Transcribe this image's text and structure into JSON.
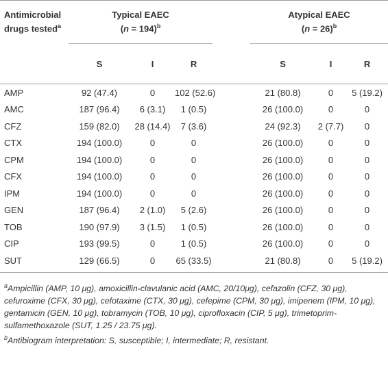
{
  "header": {
    "drug_col": "Antimicrobial drugs tested",
    "drug_col_sup": "a",
    "groups": [
      {
        "title": "Typical EAEC",
        "open": "(",
        "var": "n",
        "rest": " = 194)",
        "sup": "b"
      },
      {
        "title": "Atypical EAEC",
        "open": "(",
        "var": "n",
        "rest": " = 26)",
        "sup": "b"
      }
    ],
    "subheaders": [
      "S",
      "I",
      "R",
      "S",
      "I",
      "R"
    ]
  },
  "table": {
    "rows": [
      [
        "AMP",
        "92 (47.4)",
        "0",
        "102 (52.6)",
        "21 (80.8)",
        "0",
        "5 (19.2)"
      ],
      [
        "AMC",
        "187 (96.4)",
        "6 (3.1)",
        "1 (0.5)",
        "26 (100.0)",
        "0",
        "0"
      ],
      [
        "CFZ",
        "159 (82.0)",
        "28 (14.4)",
        "7 (3.6)",
        "24 (92.3)",
        "2 (7.7)",
        "0"
      ],
      [
        "CTX",
        "194 (100.0)",
        "0",
        "0",
        "26 (100.0)",
        "0",
        "0"
      ],
      [
        "CPM",
        "194 (100.0)",
        "0",
        "0",
        "26 (100.0)",
        "0",
        "0"
      ],
      [
        "CFX",
        "194 (100.0)",
        "0",
        "0",
        "26 (100.0)",
        "0",
        "0"
      ],
      [
        "IPM",
        "194 (100.0)",
        "0",
        "0",
        "26 (100.0)",
        "0",
        "0"
      ],
      [
        "GEN",
        "187 (96.4)",
        "2 (1.0)",
        "5 (2.6)",
        "26 (100.0)",
        "0",
        "0"
      ],
      [
        "TOB",
        "190 (97.9)",
        "3 (1.5)",
        "1 (0.5)",
        "26 (100.0)",
        "0",
        "0"
      ],
      [
        "CIP",
        "193 (99.5)",
        "0",
        "1 (0.5)",
        "26 (100.0)",
        "0",
        "0"
      ],
      [
        "SUT",
        "129 (66.5)",
        "0",
        "65 (33.5)",
        "21 (80.8)",
        "0",
        "5 (19.2)"
      ]
    ]
  },
  "footnotes": [
    {
      "marker": "a",
      "text": "Ampicillin (AMP, 10 μg), amoxicillin-clavulanic acid (AMC, 20/10μg), cefazolin (CFZ, 30 μg), cefuroxime (CFX, 30 μg), cefotaxime (CTX, 30 μg), cefepime (CPM, 30 μg), imipenem (IPM, 10 μg), gentamicin (GEN, 10 μg), tobramycin (TOB, 10 μg), ciprofloxacin (CIP, 5 μg), trimetoprim-sulfamethoxazole (SUT, 1.25 / 23.75 μg)."
    },
    {
      "marker": "b",
      "text": "Antibiogram interpretation: S, susceptible; I, intermediate; R, resistant."
    }
  ]
}
